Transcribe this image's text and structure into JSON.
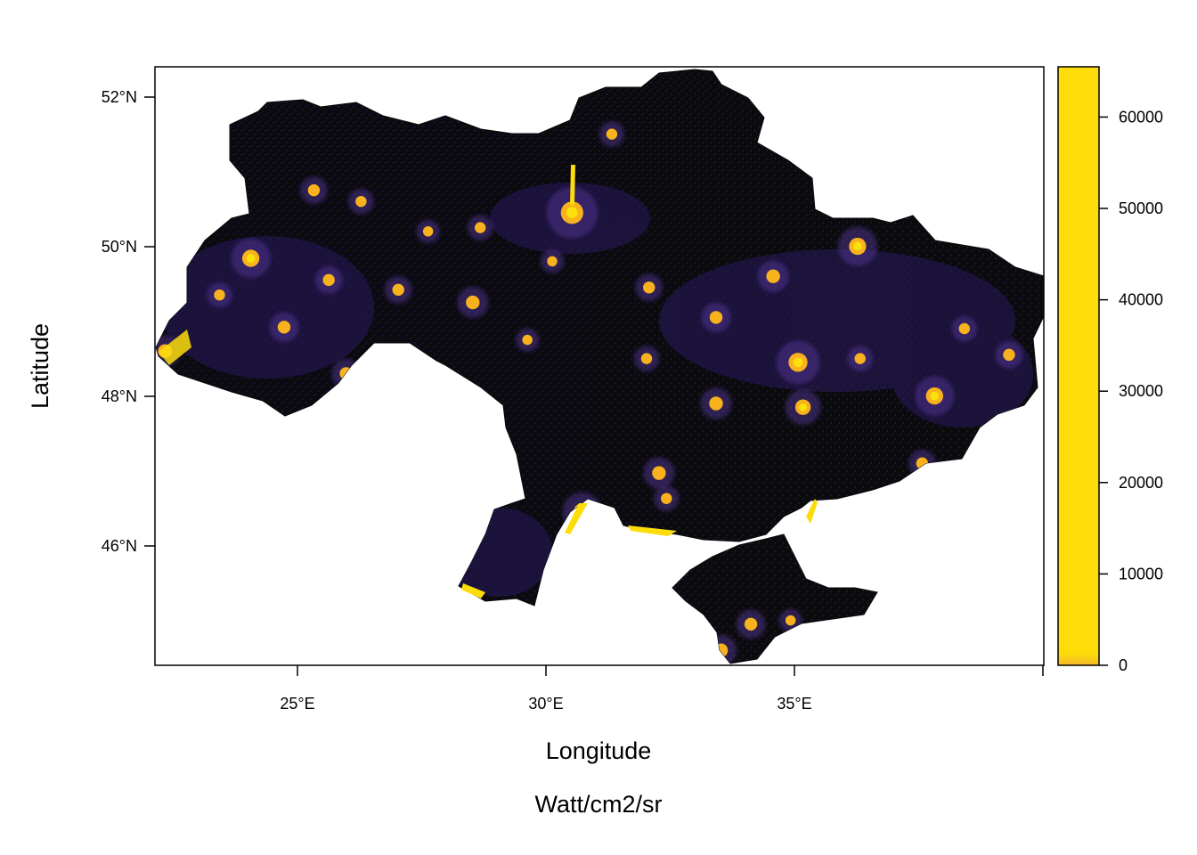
{
  "map": {
    "x_title": "Longitude",
    "y_title": "Latitude",
    "unit_label": "Watt/cm2/sr",
    "x_ticks": [
      "25°E",
      "30°E",
      "35°E"
    ],
    "y_ticks": [
      "52°N",
      "50°N",
      "48°N",
      "46°N"
    ],
    "x_range_deg": [
      22.1,
      40.0
    ],
    "y_range_deg": [
      44.4,
      52.4
    ],
    "colors": {
      "land_dark": "#0b0b0e",
      "land_dim": "#2a1a5e",
      "light_mid": "#f7b21d",
      "light_high": "#fce00c",
      "frame": "#000000"
    }
  },
  "legend": {
    "ticks": [
      "0",
      "10000",
      "20000",
      "30000",
      "40000",
      "50000",
      "60000"
    ],
    "values": [
      0,
      10000,
      20000,
      30000,
      40000,
      50000,
      60000
    ],
    "range": [
      0,
      65500
    ],
    "color_top": "#fcdd0a",
    "color_bottom": "#f5b82a"
  },
  "cities": [
    {
      "lon": 30.5,
      "lat": 50.45,
      "r": 1.0
    },
    {
      "lon": 36.25,
      "lat": 50.0,
      "r": 0.7
    },
    {
      "lon": 24.03,
      "lat": 49.84,
      "r": 0.7
    },
    {
      "lon": 35.05,
      "lat": 48.45,
      "r": 0.8
    },
    {
      "lon": 37.8,
      "lat": 48.0,
      "r": 0.7
    },
    {
      "lon": 35.15,
      "lat": 47.85,
      "r": 0.6
    },
    {
      "lon": 30.7,
      "lat": 46.45,
      "r": 0.7
    },
    {
      "lon": 28.5,
      "lat": 49.25,
      "r": 0.5
    },
    {
      "lon": 32.25,
      "lat": 46.97,
      "r": 0.5
    },
    {
      "lon": 33.4,
      "lat": 47.9,
      "r": 0.5
    },
    {
      "lon": 34.55,
      "lat": 49.6,
      "r": 0.5
    },
    {
      "lon": 32.05,
      "lat": 49.45,
      "r": 0.4
    },
    {
      "lon": 27.0,
      "lat": 49.42,
      "r": 0.4
    },
    {
      "lon": 25.3,
      "lat": 50.75,
      "r": 0.4
    },
    {
      "lon": 26.25,
      "lat": 50.6,
      "r": 0.35
    },
    {
      "lon": 24.7,
      "lat": 48.92,
      "r": 0.45
    },
    {
      "lon": 25.6,
      "lat": 49.55,
      "r": 0.4
    },
    {
      "lon": 25.95,
      "lat": 48.3,
      "r": 0.45
    },
    {
      "lon": 22.3,
      "lat": 48.6,
      "r": 0.5
    },
    {
      "lon": 23.4,
      "lat": 49.35,
      "r": 0.35
    },
    {
      "lon": 34.1,
      "lat": 44.95,
      "r": 0.45
    },
    {
      "lon": 33.5,
      "lat": 44.6,
      "r": 0.5
    },
    {
      "lon": 32.4,
      "lat": 46.63,
      "r": 0.35
    },
    {
      "lon": 39.3,
      "lat": 48.55,
      "r": 0.4
    },
    {
      "lon": 38.4,
      "lat": 48.9,
      "r": 0.35
    },
    {
      "lon": 37.55,
      "lat": 47.1,
      "r": 0.4
    },
    {
      "lon": 31.3,
      "lat": 51.5,
      "r": 0.35
    },
    {
      "lon": 33.4,
      "lat": 49.05,
      "r": 0.45
    },
    {
      "lon": 36.3,
      "lat": 48.5,
      "r": 0.35
    },
    {
      "lon": 29.6,
      "lat": 48.75,
      "r": 0.3
    },
    {
      "lon": 28.65,
      "lat": 50.25,
      "r": 0.35
    },
    {
      "lon": 27.6,
      "lat": 50.2,
      "r": 0.3
    },
    {
      "lon": 32.0,
      "lat": 48.5,
      "r": 0.35
    },
    {
      "lon": 30.1,
      "lat": 49.8,
      "r": 0.3
    },
    {
      "lon": 34.9,
      "lat": 45.0,
      "r": 0.3
    }
  ]
}
